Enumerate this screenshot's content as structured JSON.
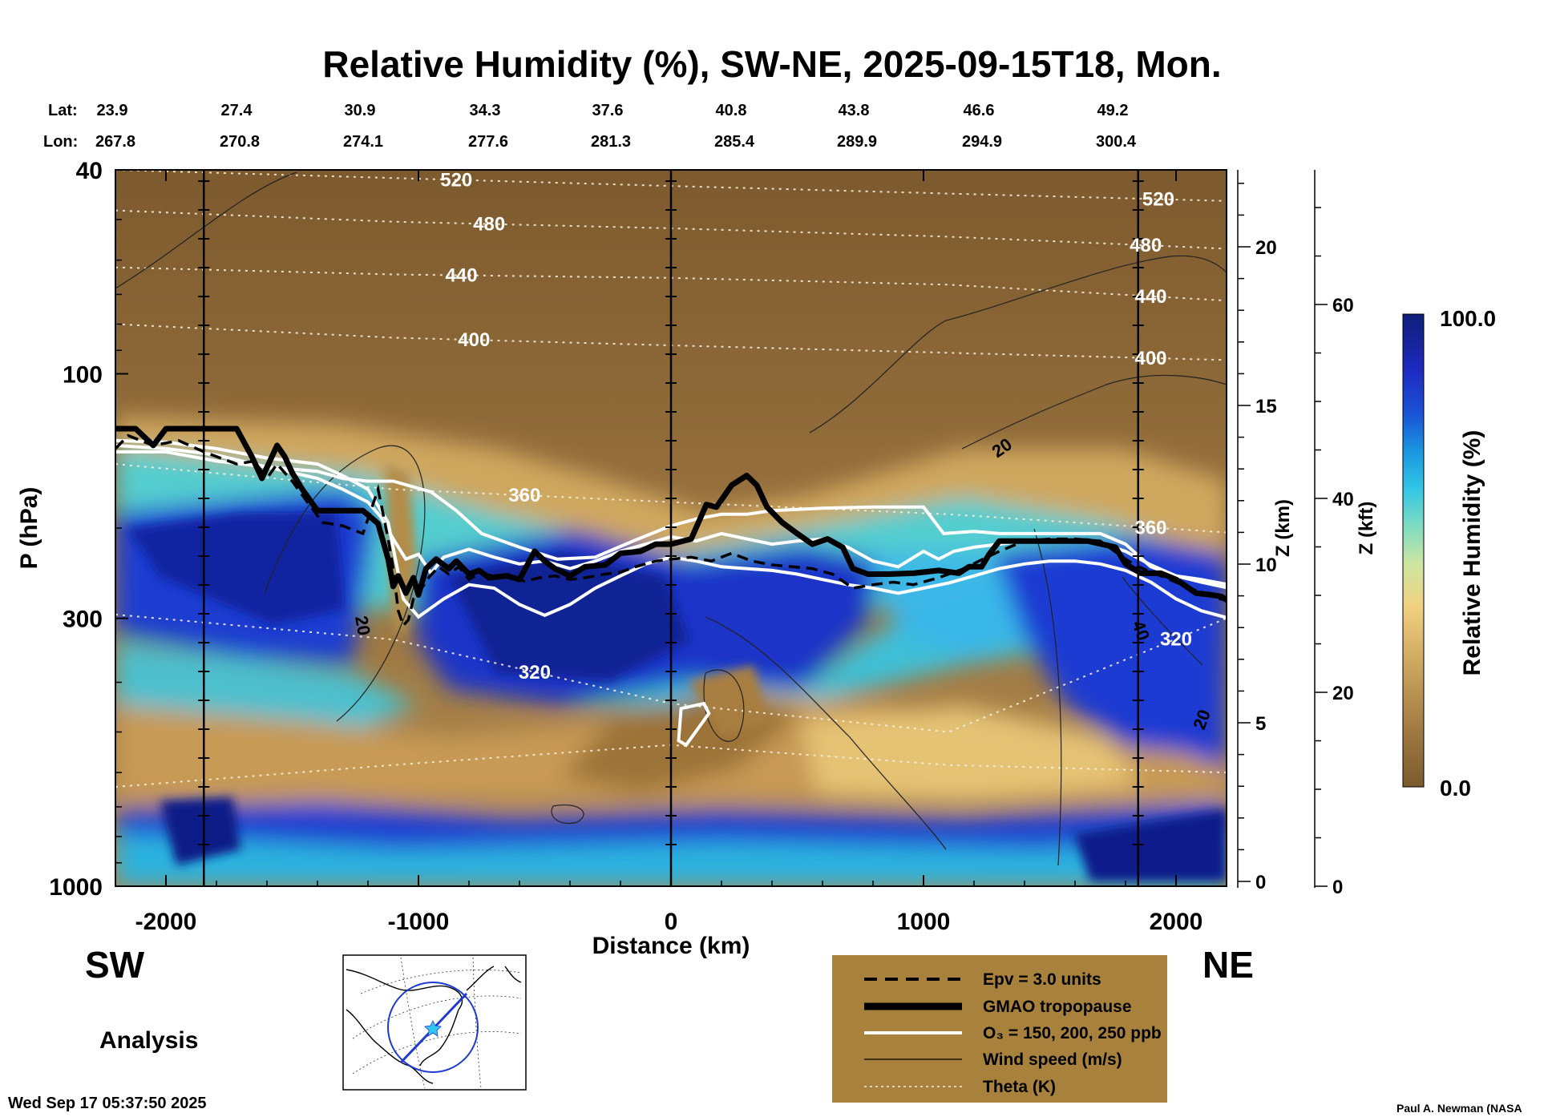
{
  "chart_data": {
    "type": "heatmap",
    "title": "Relative Humidity (%), SW-NE, 2025-09-15T18, Mon.",
    "xlabel": "Distance (km)",
    "ylabel": "P (hPa)",
    "z_label": "Z (km)",
    "zft_label": "Z (kft)",
    "xlim": [
      -2200,
      2200
    ],
    "ylim": [
      1000,
      40
    ],
    "y_scale": "log",
    "x_ticks": [
      -2000,
      -1000,
      0,
      1000,
      2000
    ],
    "x_tick_labels": [
      "-2000",
      "-1000",
      "0",
      "1000",
      "2000"
    ],
    "y_ticks": [
      40,
      100,
      300,
      1000
    ],
    "y_tick_labels": [
      "40",
      "100",
      "300",
      "1000"
    ],
    "z_ticks": [
      0,
      5,
      10,
      15,
      20
    ],
    "z_tick_labels": [
      "0",
      "5",
      "10",
      "15",
      "20"
    ],
    "zft_ticks": [
      0,
      20,
      40,
      60
    ],
    "zft_tick_labels": [
      "0",
      "20",
      "40",
      "60"
    ],
    "lat_label": "Lat:",
    "lon_label": "Lon:",
    "lats": [
      "23.9",
      "27.4",
      "30.9",
      "34.3",
      "37.6",
      "40.8",
      "43.8",
      "46.6",
      "49.2"
    ],
    "lons": [
      "267.8",
      "270.8",
      "274.1",
      "277.6",
      "281.3",
      "285.4",
      "289.9",
      "294.9",
      "300.4"
    ],
    "station_x": [
      -1850,
      0,
      1850
    ],
    "colorbar": {
      "label": "Relative Humidity (%)",
      "max_label": "100.0",
      "min_label": "0.0",
      "range": [
        0,
        100
      ]
    },
    "theta_labels": [
      "520",
      "480",
      "440",
      "400",
      "360",
      "320"
    ],
    "wind_labels": [
      "20",
      "20",
      "20",
      "40"
    ],
    "legend": [
      {
        "label": "Epv = 3.0 units",
        "style": "dashed-black"
      },
      {
        "label": "GMAO tropopause",
        "style": "thick-black"
      },
      {
        "label": "O₃ = 150, 200, 250 ppb",
        "style": "white"
      },
      {
        "label": "Wind speed (m/s)",
        "style": "thin-black"
      },
      {
        "label": "Theta (K)",
        "style": "dotted-white"
      }
    ],
    "tropopause": {
      "x": [
        -2200,
        -2120,
        -2050,
        -2000,
        -1950,
        -1850,
        -1720,
        -1660,
        -1620,
        -1560,
        -1530,
        -1500,
        -1460,
        -1400,
        -1350,
        -1300,
        -1220,
        -1160,
        -1120,
        -1100,
        -1080,
        -1050,
        -1020,
        -1000,
        -970,
        -930,
        -880,
        -850,
        -800,
        -760,
        -720,
        -650,
        -600,
        -540,
        -500,
        -460,
        -400,
        -340,
        -260,
        -200,
        -120,
        -60,
        0,
        80,
        140,
        180,
        240,
        300,
        340,
        380,
        440,
        500,
        560,
        620,
        680,
        720,
        780,
        860,
        960,
        1060,
        1140,
        1180,
        1230,
        1260,
        1300,
        1350,
        1500,
        1650,
        1760,
        1800,
        1860,
        1940,
        2000,
        2080,
        2140,
        2180,
        2210
      ],
      "p": [
        128,
        128,
        138,
        128,
        128,
        128,
        128,
        145,
        160,
        138,
        145,
        156,
        168,
        185,
        185,
        185,
        185,
        196,
        230,
        260,
        248,
        268,
        250,
        270,
        240,
        230,
        240,
        232,
        246,
        242,
        250,
        248,
        252,
        222,
        232,
        240,
        248,
        238,
        236,
        224,
        222,
        215,
        215,
        210,
        180,
        182,
        165,
        158,
        165,
        182,
        195,
        205,
        215,
        210,
        218,
        240,
        246,
        246,
        245,
        242,
        245,
        238,
        238,
        225,
        212,
        212,
        212,
        212,
        218,
        235,
        245,
        245,
        252,
        268,
        270,
        272,
        278
      ]
    },
    "epv": {
      "x": [
        -2200,
        -2150,
        -2050,
        -1950,
        -1850,
        -1720,
        -1650,
        -1600,
        -1560,
        -1500,
        -1440,
        -1380,
        -1300,
        -1220,
        -1160,
        -1120,
        -1100,
        -1080,
        -1060,
        -1040,
        -1020,
        -1000,
        -960,
        -920,
        -880,
        -840,
        -800,
        -760,
        -700,
        -640,
        -580,
        -520,
        -460,
        -400,
        -340,
        -260,
        -200,
        -140,
        -60,
        0,
        80,
        160,
        240,
        320,
        400,
        480,
        560,
        640,
        720,
        800,
        880,
        960,
        1060,
        1160,
        1220,
        1300,
        1400,
        1500,
        1600,
        1700,
        1800,
        1850,
        1940,
        2040,
        2120,
        2210
      ],
      "p": [
        140,
        132,
        138,
        135,
        142,
        150,
        148,
        160,
        150,
        162,
        178,
        195,
        198,
        205,
        168,
        210,
        240,
        290,
        310,
        302,
        275,
        268,
        250,
        238,
        246,
        238,
        252,
        245,
        248,
        246,
        254,
        250,
        248,
        252,
        250,
        246,
        244,
        238,
        232,
        230,
        228,
        232,
        224,
        232,
        236,
        238,
        240,
        246,
        262,
        258,
        255,
        258,
        250,
        240,
        232,
        222,
        212,
        210,
        210,
        212,
        230,
        238,
        248,
        260,
        270,
        278
      ]
    },
    "o3": [
      {
        "x": [
          -2200,
          -2000,
          -1800,
          -1600,
          -1400,
          -1300,
          -1200,
          -1100,
          -950,
          -850,
          -750,
          -600,
          -450,
          -300,
          -150,
          0,
          100,
          200,
          300,
          400,
          600,
          800,
          1000,
          1080,
          1200,
          1300,
          1500,
          1700,
          1800,
          1900,
          2000,
          2100,
          2210
        ],
        "p": [
          142,
          142,
          148,
          152,
          155,
          160,
          162,
          162,
          170,
          185,
          205,
          218,
          230,
          228,
          212,
          198,
          192,
          188,
          188,
          185,
          183,
          182,
          182,
          205,
          203,
          205,
          205,
          205,
          215,
          238,
          248,
          255,
          262
        ]
      },
      {
        "x": [
          -2200,
          -2000,
          -1800,
          -1600,
          -1400,
          -1300,
          -1200,
          -1150,
          -1100,
          -1050,
          -1000,
          -950,
          -900,
          -800,
          -700,
          -600,
          -500,
          -400,
          -300,
          -200,
          -100,
          0,
          100,
          200,
          300,
          400,
          500,
          600,
          700,
          800,
          900,
          1000,
          1060,
          1120,
          1200,
          1300,
          1400,
          1500,
          1600,
          1700,
          1800,
          1900,
          2000,
          2100,
          2210
        ],
        "p": [
          138,
          140,
          144,
          152,
          160,
          168,
          178,
          190,
          210,
          230,
          225,
          245,
          228,
          220,
          228,
          235,
          232,
          240,
          232,
          222,
          215,
          208,
          212,
          205,
          210,
          215,
          212,
          210,
          218,
          232,
          238,
          222,
          230,
          222,
          218,
          215,
          212,
          212,
          212,
          214,
          222,
          236,
          248,
          252,
          258
        ]
      },
      {
        "x": [
          -2200,
          -2000,
          -1800,
          -1600,
          -1400,
          -1300,
          -1200,
          -1120,
          -1060,
          -1000,
          -900,
          -800,
          -700,
          -600,
          -500,
          -400,
          -300,
          -200,
          -100,
          0,
          100,
          200,
          300,
          400,
          500,
          600,
          700,
          800,
          900,
          1000,
          1100,
          1200,
          1300,
          1400,
          1500,
          1600,
          1700,
          1800,
          1900,
          2000,
          2100,
          2210
        ],
        "p": [
          135,
          136,
          140,
          146,
          150,
          158,
          168,
          195,
          275,
          298,
          275,
          258,
          262,
          282,
          296,
          282,
          262,
          248,
          235,
          228,
          232,
          238,
          240,
          242,
          246,
          252,
          258,
          262,
          268,
          262,
          256,
          248,
          240,
          235,
          232,
          232,
          235,
          242,
          255,
          275,
          290,
          300
        ]
      }
    ],
    "o3_blob": {
      "x": [
        40,
        130,
        150,
        60,
        30,
        40
      ],
      "p": [
        450,
        440,
        460,
        530,
        520,
        450
      ]
    },
    "theta": [
      {
        "label": "520",
        "x_label": -850,
        "label_x2": 1930,
        "p": [
          40,
          41.5,
          43,
          44.5,
          46
        ]
      },
      {
        "label": "480",
        "x_label": -720,
        "label_x2": 1880,
        "p": [
          48,
          50.5,
          52,
          54,
          57
        ]
      },
      {
        "label": "440",
        "x_label": -830,
        "label_x2": 1900,
        "p": [
          62,
          64,
          65,
          67,
          72
        ]
      },
      {
        "label": "400",
        "x_label": -780,
        "label_x2": 1900,
        "p": [
          80,
          85,
          88,
          91,
          94
        ]
      },
      {
        "label": "360",
        "x_label": -580,
        "label_x2": 1900,
        "p": [
          150,
          168,
          178,
          188,
          204
        ]
      },
      {
        "label": "320",
        "x_label": -540,
        "label_x2": 2000,
        "p": [
          295,
          330,
          440,
          500,
          300
        ]
      },
      {
        "label": "",
        "x_label": null,
        "label_x2": null,
        "p": [
          640,
          580,
          530,
          580,
          600
        ]
      }
    ]
  }
}
